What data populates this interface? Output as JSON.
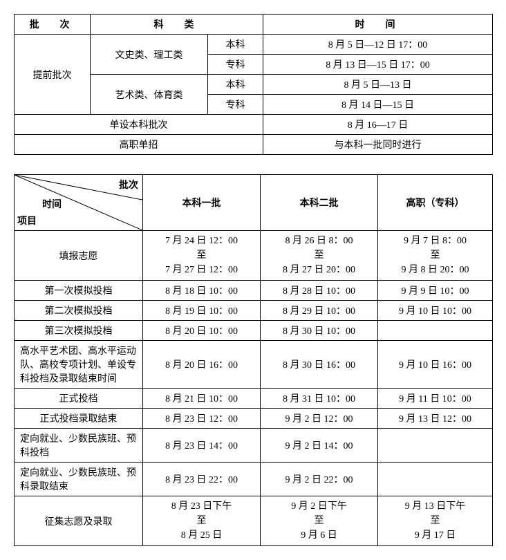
{
  "table1": {
    "headers": {
      "batch": "批　次",
      "category": "科　类",
      "time": "时　间"
    },
    "rows": {
      "advance_batch": "提前批次",
      "wenshi_ligong": "文史类、理工类",
      "yishu_tiyu": "艺术类、体育类",
      "benke": "本科",
      "zhuanke": "专科",
      "wenshi_benke_time": "8 月 5 日—12 日 17：00",
      "wenshi_zhuanke_time": "8 月 13 日—15 日 17：00",
      "yishu_benke_time": "8 月 5 日—13 日",
      "yishu_zhuanke_time": "8 月 14 日—15 日",
      "danshe_benke": "单设本科批次",
      "danshe_benke_time": "8 月 16—17 日",
      "gaozhi_danzhao": "高职单招",
      "gaozhi_danzhao_time": "与本科一批同时进行"
    }
  },
  "table2": {
    "diag": {
      "batch": "批次",
      "time": "时间",
      "item": "项目"
    },
    "col_headers": {
      "bk1": "本科一批",
      "bk2": "本科二批",
      "gz": "高职（专科）"
    },
    "rows": [
      {
        "label": "填报志愿",
        "bk1": "7 月 24 日 12：00\n至\n7 月 27 日 12：00",
        "bk2": "8 月 26 日 8：00\n至\n8 月 27 日 20：00",
        "gz": "9 月 7 日 8：00\n至\n9 月 8 日 20：00"
      },
      {
        "label": "第一次模拟投档",
        "bk1": "8 月 18 日 10：00",
        "bk2": "8 月 28 日 10：00",
        "gz": "9 月 9 日 10：00"
      },
      {
        "label": "第二次模拟投档",
        "bk1": "8 月 19 日 10：00",
        "bk2": "8 月 29 日 10：00",
        "gz": "9 月 10 日 10：00"
      },
      {
        "label": "第三次模拟投档",
        "bk1": "8 月 20 日 10：00",
        "bk2": "8 月 30 日 10：00",
        "gz": ""
      },
      {
        "label": "高水平艺术团、高水平运动队、高校专项计划、单设专科投档及录取结束时间",
        "bk1": "8 月 20 日 16：00",
        "bk2": "8 月 30 日 16：00",
        "gz": "9 月 10 日 16：00",
        "label_align": "left"
      },
      {
        "label": "正式投档",
        "bk1": "8 月 21 日 10：00",
        "bk2": "8 月 31 日 10：00",
        "gz": "9 月 11 日 10：00"
      },
      {
        "label": "正式投档录取结束",
        "bk1": "8 月 23 日 12：00",
        "bk2": "9 月 2 日 12：00",
        "gz": "9 月 13 日 12：00"
      },
      {
        "label": "定向就业、少数民族班、预科投档",
        "bk1": "8 月 23 日 14：00",
        "bk2": "9 月 2 日 14：00",
        "gz": "",
        "label_align": "left"
      },
      {
        "label": "定向就业、少数民族班、预科录取结束",
        "bk1": "8 月 23 日 22：00",
        "bk2": "9 月 2 日 22：00",
        "gz": "",
        "label_align": "left"
      },
      {
        "label": "征集志愿及录取",
        "bk1": "8 月 23 日下午\n至\n8 月 25 日",
        "bk2": "9 月 2 日下午\n至\n9 月 6 日",
        "gz": "9 月 13 日下午\n至\n9 月 17 日"
      }
    ]
  }
}
